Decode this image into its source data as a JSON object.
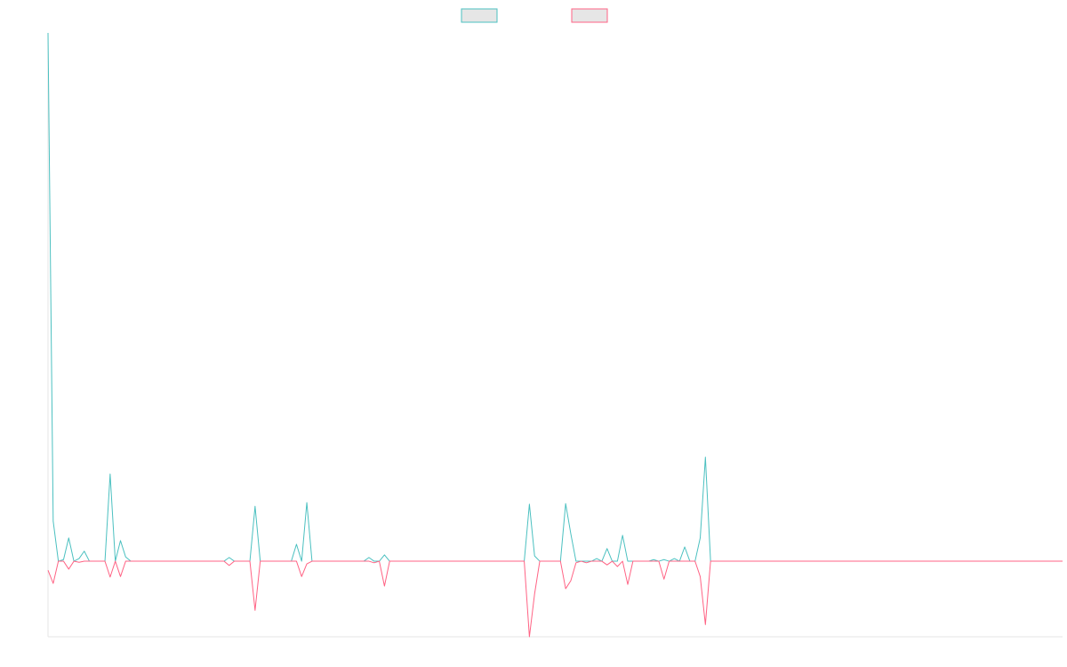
{
  "chart_data": {
    "type": "line",
    "ylim": [
      -14.3,
      100
    ],
    "legend": "top",
    "series": [
      {
        "color": "#4bc0c0",
        "values": [
          100,
          7.6,
          0,
          0.3,
          4.4,
          0,
          0.5,
          1.9,
          0,
          0,
          0,
          0,
          16.5,
          0,
          3.9,
          0.8,
          0,
          0,
          0,
          0,
          0,
          0,
          0,
          0,
          0,
          0,
          0,
          0,
          0,
          0,
          0,
          0,
          0,
          0,
          0,
          0.7,
          0,
          0,
          0,
          0,
          10.4,
          0,
          0,
          0,
          0,
          0,
          0,
          0,
          3.2,
          0,
          11.1,
          0,
          0,
          0,
          0,
          0,
          0,
          0,
          0,
          0,
          0,
          0,
          0.7,
          0,
          0,
          1.2,
          0,
          0,
          0,
          0,
          0,
          0,
          0,
          0,
          0,
          0,
          0,
          0,
          0,
          0,
          0,
          0,
          0,
          0,
          0,
          0,
          0,
          0,
          0,
          0,
          0,
          0,
          0,
          10.8,
          1,
          0,
          0,
          0,
          0,
          0,
          10.9,
          5.2,
          0,
          0,
          0,
          0,
          0.5,
          0,
          2.4,
          0,
          0,
          4.9,
          0,
          0,
          0,
          0,
          0,
          0.3,
          0,
          0.3,
          0,
          0.5,
          0,
          2.7,
          0,
          0,
          4.4,
          19.7,
          0,
          0,
          0,
          0,
          0,
          0,
          0,
          0,
          0,
          0,
          0,
          0,
          0,
          0,
          0,
          0,
          0,
          0,
          0,
          0,
          0,
          0,
          0,
          0,
          0,
          0,
          0,
          0,
          0,
          0,
          0,
          0,
          0,
          0,
          0,
          0,
          0,
          0,
          0,
          0,
          0,
          0,
          0,
          0,
          0,
          0,
          0,
          0,
          0,
          0,
          0,
          0,
          0,
          0,
          0,
          0,
          0,
          0,
          0,
          0,
          0,
          0,
          0,
          0,
          0,
          0,
          0,
          0,
          0
        ]
      },
      {
        "color": "#ff6384",
        "values": [
          -1.7,
          -4.2,
          0,
          0,
          -1.5,
          0,
          -0.2,
          0,
          0,
          0,
          0,
          0,
          -3,
          0,
          -2.9,
          0,
          0,
          0,
          0,
          0,
          0,
          0,
          0,
          0,
          0,
          0,
          0,
          0,
          0,
          0,
          0,
          0,
          0,
          0,
          0,
          -0.8,
          0,
          0,
          0,
          0,
          -9.3,
          0,
          0,
          0,
          0,
          0,
          0,
          0,
          0,
          -2.9,
          -0.5,
          0,
          0,
          0,
          0,
          0,
          0,
          0,
          0,
          0,
          0,
          0,
          0,
          -0.3,
          0,
          -4.7,
          0,
          0,
          0,
          0,
          0,
          0,
          0,
          0,
          0,
          0,
          0,
          0,
          0,
          0,
          0,
          0,
          0,
          0,
          0,
          0,
          0,
          0,
          0,
          0,
          0,
          0,
          0,
          -14.3,
          -6.2,
          0,
          0,
          0,
          0,
          0,
          -5.2,
          -3.7,
          -0.3,
          0,
          -0.3,
          0,
          0,
          0,
          -0.7,
          0,
          -1,
          0,
          -4.4,
          0,
          0,
          0,
          0,
          0,
          0,
          -3.4,
          0,
          0,
          0,
          0,
          0,
          0,
          -2.9,
          -12,
          0,
          0,
          0,
          0,
          0,
          0,
          0,
          0,
          0,
          0,
          0,
          0,
          0,
          0,
          0,
          0,
          0,
          0,
          0,
          0,
          0,
          0,
          0,
          0,
          0,
          0,
          0,
          0,
          0,
          0,
          0,
          0,
          0,
          0,
          0,
          0,
          0,
          0,
          0,
          0,
          0,
          0,
          0,
          0,
          0,
          0,
          0,
          0,
          0,
          0,
          0,
          0,
          0,
          0,
          0,
          0,
          0,
          0,
          0,
          0,
          0,
          0,
          0,
          0,
          0,
          0,
          0,
          0,
          0
        ]
      }
    ]
  }
}
